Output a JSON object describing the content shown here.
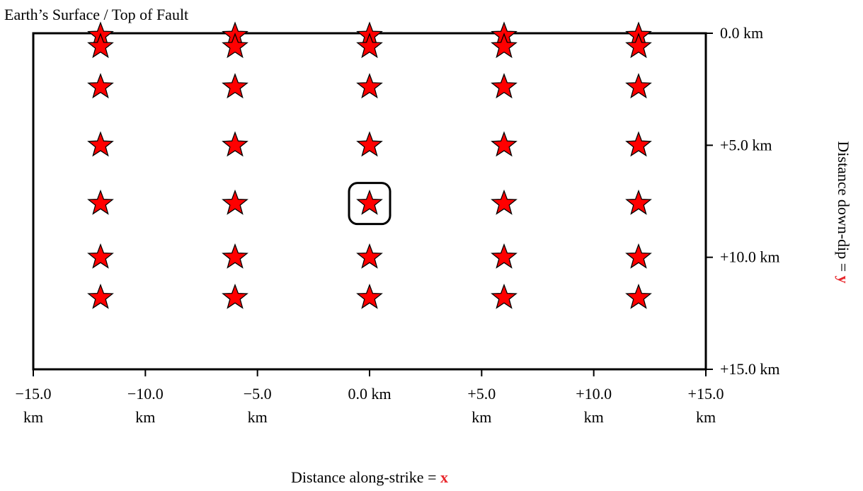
{
  "chart_data": {
    "type": "scatter",
    "title": "Earth’s Surface / Top of Fault",
    "x_label": "Distance along-strike =",
    "x_label_var": "x",
    "y_label": "Distance down-dip =",
    "y_label_var": "y",
    "x": [
      -12,
      -12,
      -12,
      -12,
      -12,
      -12,
      -12,
      -6,
      -6,
      -6,
      -6,
      -6,
      -6,
      -6,
      0,
      0,
      0,
      0,
      0,
      0,
      0,
      6,
      6,
      6,
      6,
      6,
      6,
      6,
      12,
      12,
      12,
      12,
      12,
      12,
      12
    ],
    "y": [
      0.1,
      0.6,
      2.4,
      5,
      7.6,
      10,
      11.8,
      0.1,
      0.6,
      2.4,
      5,
      7.6,
      10,
      11.8,
      0.1,
      0.6,
      2.4,
      5,
      7.6,
      10,
      11.8,
      0.1,
      0.6,
      2.4,
      5,
      7.6,
      10,
      11.8,
      0.1,
      0.6,
      2.4,
      5,
      7.6,
      10,
      11.8
    ],
    "color": "#ff0000",
    "highlight": 18,
    "xlim": [
      -15,
      15
    ],
    "ylim": [
      0,
      15
    ],
    "y_inverted": true,
    "y_axis_side": "right",
    "xticks": [
      {
        "value": -15,
        "label": "−15.0 km"
      },
      {
        "value": -10,
        "label": "−10.0 km"
      },
      {
        "value": -5,
        "label": "−5.0 km"
      },
      {
        "value": 0,
        "label": "0.0 km"
      },
      {
        "value": 5,
        "label": "+5.0 km"
      },
      {
        "value": 10,
        "label": "+10.0 km"
      },
      {
        "value": 15,
        "label": "+15.0 km"
      }
    ],
    "yticks": [
      {
        "value": 0,
        "label": "0.0 km"
      },
      {
        "value": 5,
        "label": "+5.0 km"
      },
      {
        "value": 10,
        "label": "+10.0 km"
      },
      {
        "value": 15,
        "label": "+15.0 km"
      }
    ]
  }
}
